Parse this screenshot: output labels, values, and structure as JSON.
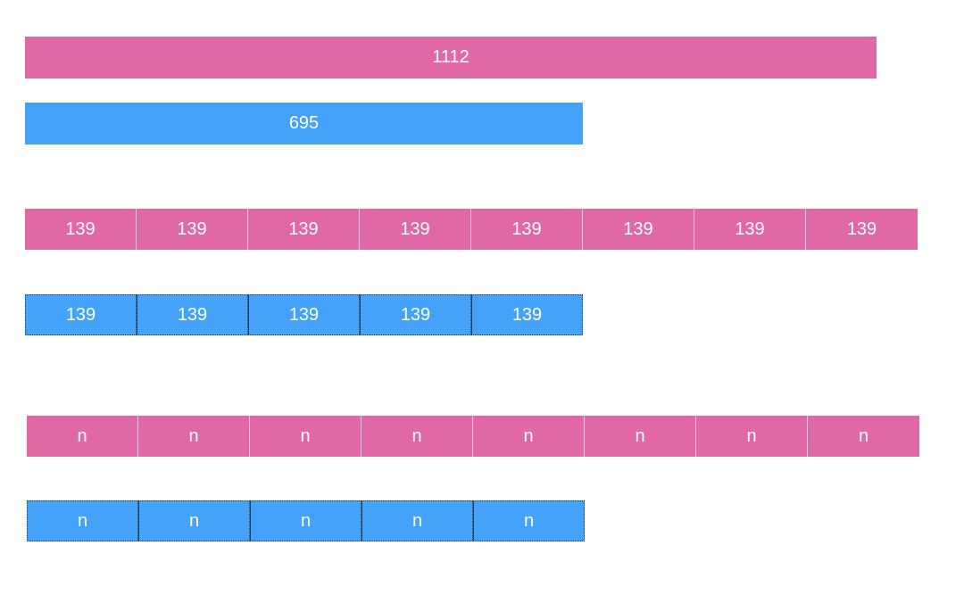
{
  "colors": {
    "pink": "#df68a5",
    "blue": "#44a3f8"
  },
  "total_bars": {
    "pink": "1112",
    "blue": "695"
  },
  "segment_rows": [
    {
      "color": "pink",
      "labels": [
        "139",
        "139",
        "139",
        "139",
        "139",
        "139",
        "139",
        "139"
      ]
    },
    {
      "color": "blue",
      "labels": [
        "139",
        "139",
        "139",
        "139",
        "139"
      ]
    },
    {
      "color": "pink",
      "labels": [
        "n",
        "n",
        "n",
        "n",
        "n",
        "n",
        "n",
        "n"
      ]
    },
    {
      "color": "blue",
      "labels": [
        "n",
        "n",
        "n",
        "n",
        "n"
      ]
    }
  ]
}
